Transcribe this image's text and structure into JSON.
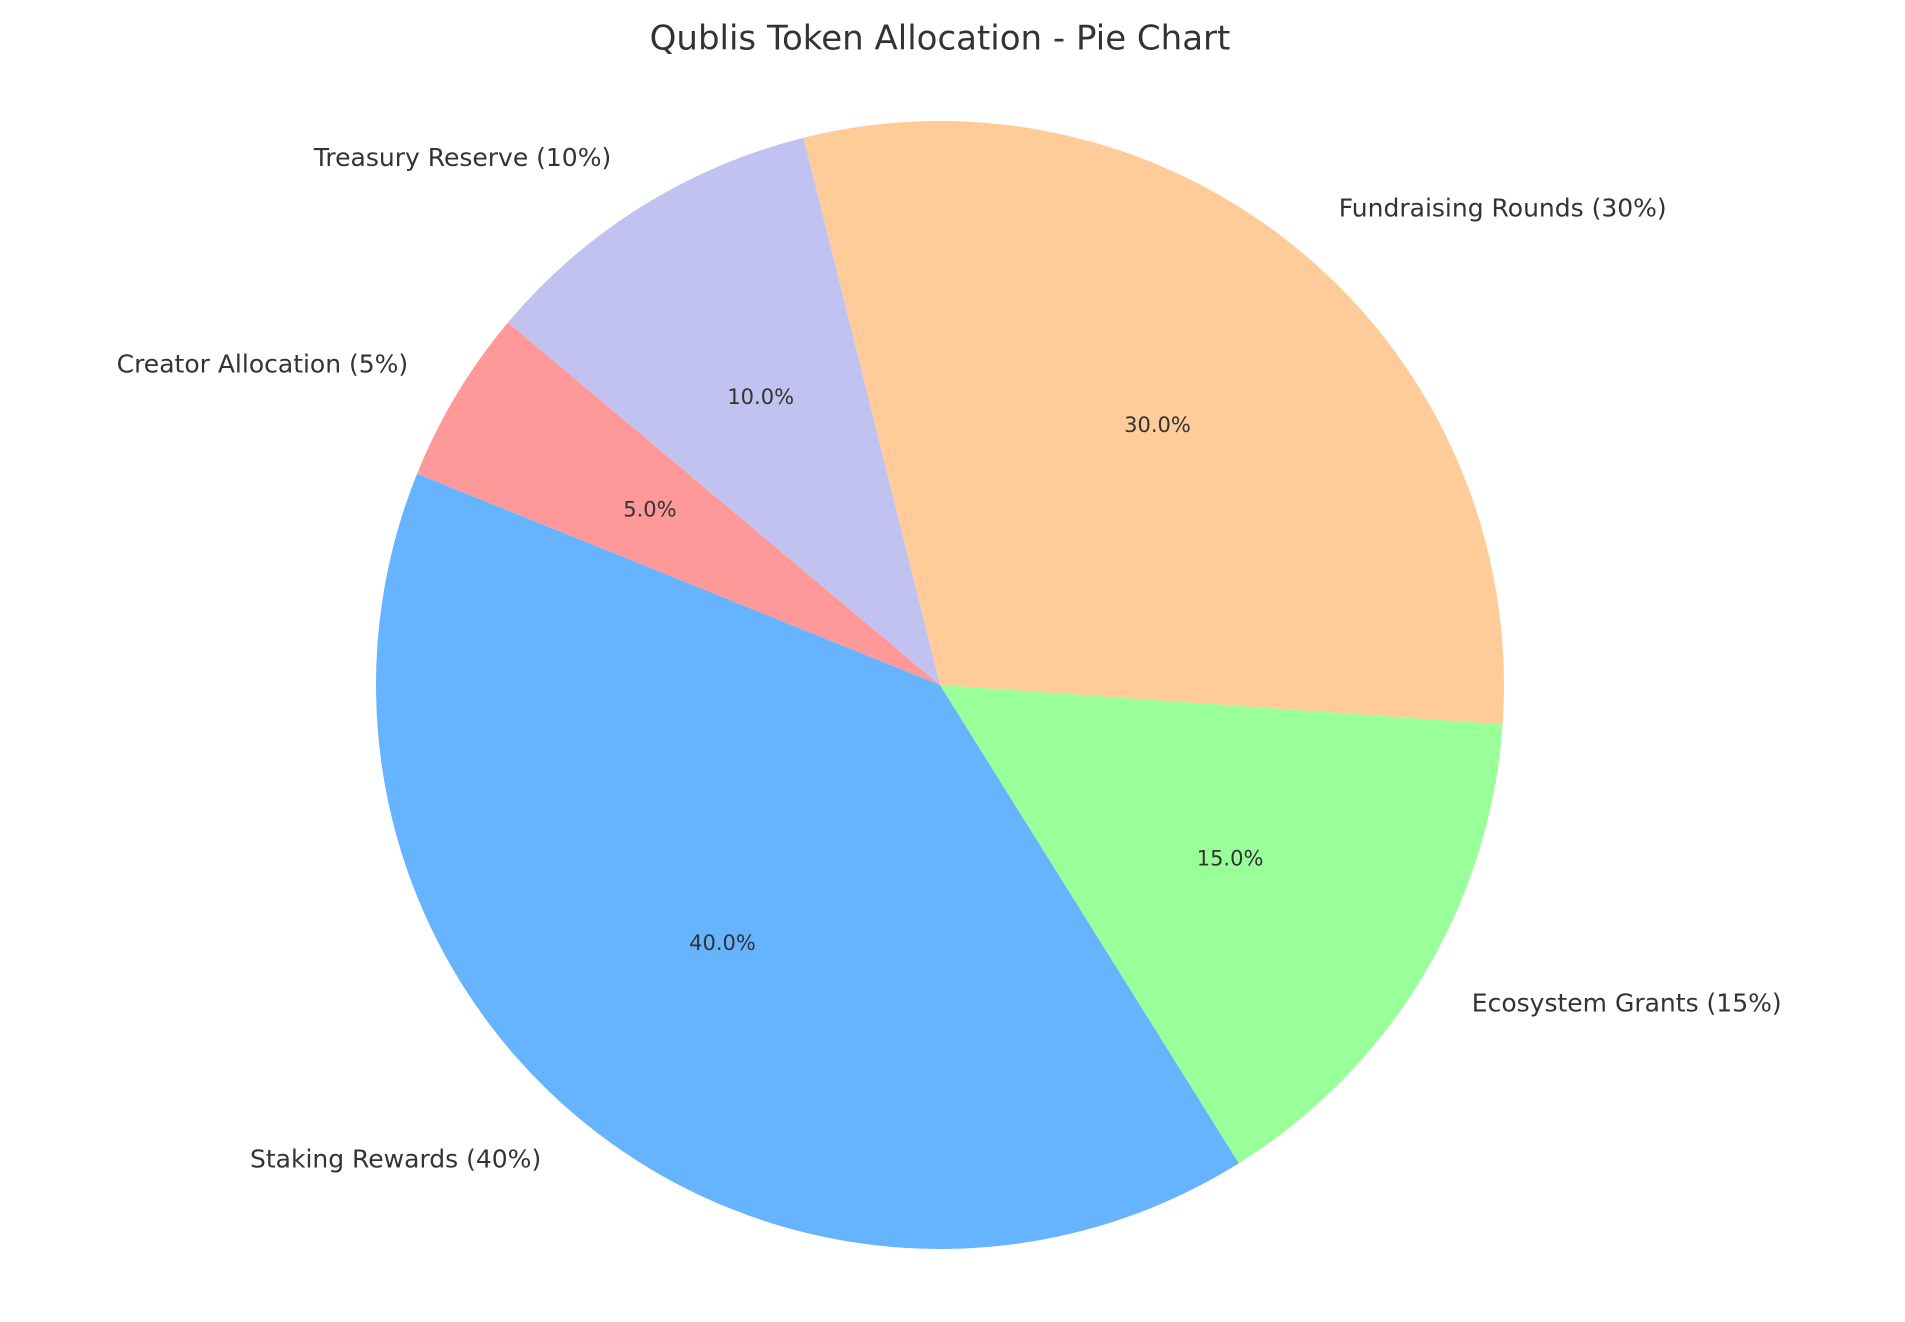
{
  "chart_data": {
    "type": "pie",
    "title": "Qublis Token Allocation - Pie Chart",
    "categories": [
      "Creator Allocation (5%)",
      "Staking Rewards (40%)",
      "Ecosystem Grants (15%)",
      "Fundraising Rounds (30%)",
      "Treasury Reserve (10%)"
    ],
    "values": [
      5,
      40,
      15,
      30,
      10
    ],
    "value_labels": [
      "5.0%",
      "40.0%",
      "15.0%",
      "30.0%",
      "10.0%"
    ],
    "colors": [
      "#ff9999",
      "#66b3ff",
      "#99ff99",
      "#ffcc99",
      "#c2c2f0"
    ]
  }
}
